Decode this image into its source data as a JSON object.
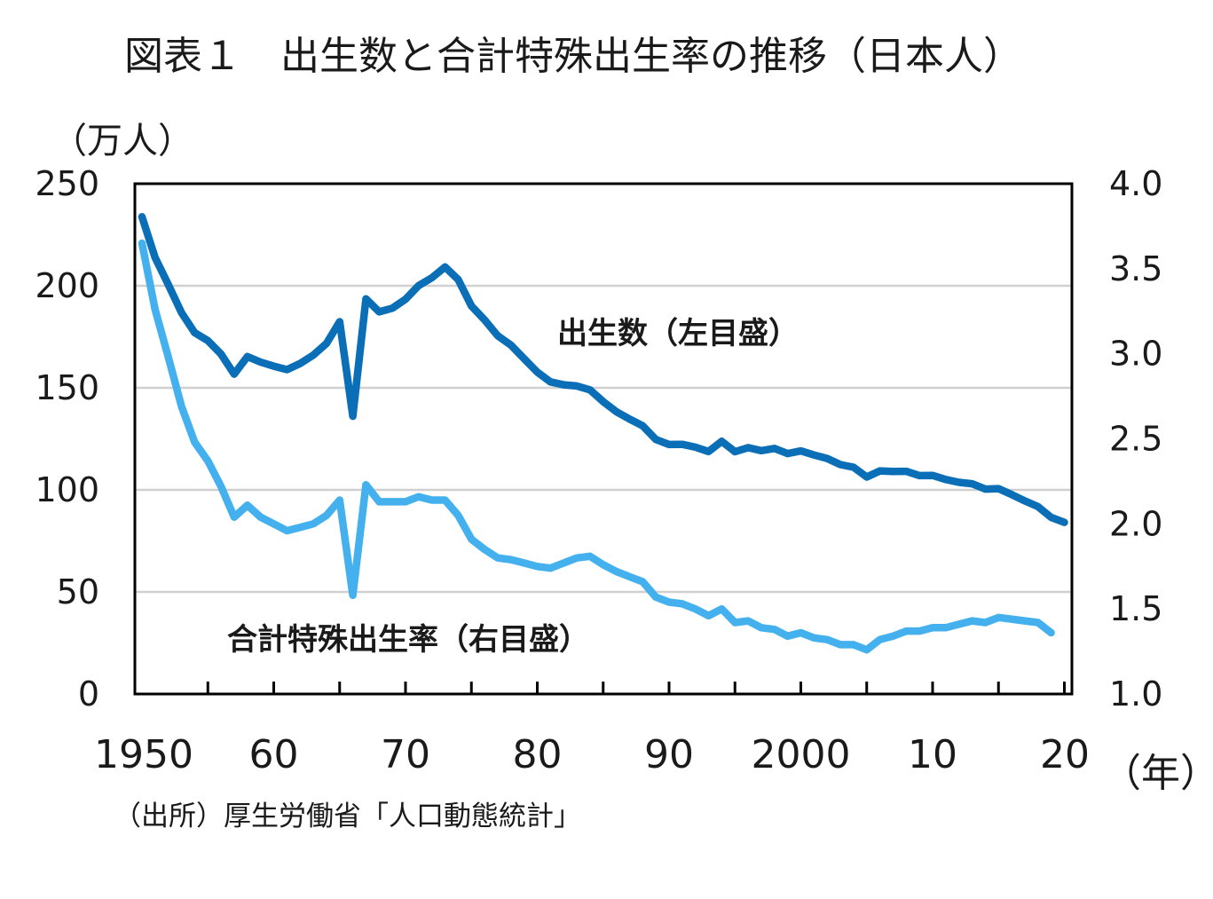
{
  "title": "図表１　出生数と合計特殊出生率の推移（日本人）",
  "source": "（出所）厚生労働省「人口動態統計」",
  "colors": {
    "births": "#0b6fb8",
    "tfr": "#44b1ee",
    "grid": "#d0d0d0",
    "axis": "#000000"
  },
  "chart_data": {
    "type": "line",
    "x_ticks": [
      {
        "year": 1950,
        "label": "1950"
      },
      {
        "year": 1960,
        "label": "60"
      },
      {
        "year": 1970,
        "label": "70"
      },
      {
        "year": 1980,
        "label": "80"
      },
      {
        "year": 1990,
        "label": "90"
      },
      {
        "year": 2000,
        "label": "2000"
      },
      {
        "year": 2010,
        "label": "10"
      },
      {
        "year": 2020,
        "label": "20"
      }
    ],
    "xlim": [
      1950,
      2020
    ],
    "xlabel": "（年）",
    "y_left": {
      "label": "（万人）",
      "lim": [
        0,
        250
      ],
      "ticks": [
        "0",
        "50",
        "100",
        "150",
        "200",
        "250"
      ]
    },
    "y_right": {
      "lim": [
        1.0,
        4.0
      ],
      "ticks": [
        "1.0",
        "1.5",
        "2.0",
        "2.5",
        "3.0",
        "3.5",
        "4.0"
      ]
    },
    "grid": "horizontal",
    "series": [
      {
        "name": "出生数（左目盛）",
        "axis": "left",
        "x": [
          1950,
          1951,
          1952,
          1953,
          1954,
          1955,
          1956,
          1957,
          1958,
          1959,
          1960,
          1961,
          1962,
          1963,
          1964,
          1965,
          1966,
          1967,
          1968,
          1969,
          1970,
          1971,
          1972,
          1973,
          1974,
          1975,
          1976,
          1977,
          1978,
          1979,
          1980,
          1981,
          1982,
          1983,
          1984,
          1985,
          1986,
          1987,
          1988,
          1989,
          1990,
          1991,
          1992,
          1993,
          1994,
          1995,
          1996,
          1997,
          1998,
          1999,
          2000,
          2001,
          2002,
          2003,
          2004,
          2005,
          2006,
          2007,
          2008,
          2009,
          2010,
          2011,
          2012,
          2013,
          2014,
          2015,
          2016,
          2017,
          2018,
          2019,
          2020
        ],
        "values": [
          233.8,
          213.8,
          200.5,
          186.8,
          177.0,
          173.1,
          166.5,
          156.7,
          165.3,
          162.6,
          160.6,
          158.9,
          161.9,
          166.0,
          171.7,
          182.4,
          136.1,
          193.6,
          187.2,
          189.0,
          193.4,
          200.1,
          203.9,
          209.2,
          203.0,
          190.1,
          183.3,
          175.5,
          170.9,
          164.3,
          157.7,
          152.9,
          151.5,
          150.9,
          149.0,
          143.2,
          138.3,
          134.7,
          131.4,
          124.7,
          122.2,
          122.3,
          120.9,
          118.8,
          123.8,
          118.7,
          120.7,
          119.2,
          120.3,
          117.8,
          119.1,
          117.1,
          115.4,
          112.4,
          111.1,
          106.3,
          109.3,
          109.0,
          109.1,
          107.0,
          107.1,
          105.1,
          103.7,
          103.0,
          100.4,
          100.6,
          97.7,
          94.6,
          91.8,
          86.5,
          84.1
        ]
      },
      {
        "name": "合計特殊出生率（右目盛）",
        "axis": "right",
        "x": [
          1950,
          1951,
          1952,
          1953,
          1954,
          1955,
          1956,
          1957,
          1958,
          1959,
          1960,
          1961,
          1962,
          1963,
          1964,
          1965,
          1966,
          1967,
          1968,
          1969,
          1970,
          1971,
          1972,
          1973,
          1974,
          1975,
          1976,
          1977,
          1978,
          1979,
          1980,
          1981,
          1982,
          1983,
          1984,
          1985,
          1986,
          1987,
          1988,
          1989,
          1990,
          1991,
          1992,
          1993,
          1994,
          1995,
          1996,
          1997,
          1998,
          1999,
          2000,
          2001,
          2002,
          2003,
          2004,
          2005,
          2006,
          2007,
          2008,
          2009,
          2010,
          2011,
          2012,
          2013,
          2014,
          2015,
          2016,
          2017,
          2018,
          2019
        ],
        "values": [
          3.65,
          3.26,
          2.98,
          2.69,
          2.48,
          2.37,
          2.22,
          2.04,
          2.11,
          2.04,
          2.0,
          1.96,
          1.98,
          2.0,
          2.05,
          2.14,
          1.58,
          2.23,
          2.13,
          2.13,
          2.13,
          2.16,
          2.14,
          2.14,
          2.05,
          1.91,
          1.85,
          1.8,
          1.79,
          1.77,
          1.75,
          1.74,
          1.77,
          1.8,
          1.81,
          1.76,
          1.72,
          1.69,
          1.66,
          1.57,
          1.54,
          1.53,
          1.5,
          1.46,
          1.5,
          1.42,
          1.43,
          1.39,
          1.38,
          1.34,
          1.36,
          1.33,
          1.32,
          1.29,
          1.29,
          1.26,
          1.32,
          1.34,
          1.37,
          1.37,
          1.39,
          1.39,
          1.41,
          1.43,
          1.42,
          1.45,
          1.44,
          1.43,
          1.42,
          1.36
        ]
      }
    ]
  }
}
